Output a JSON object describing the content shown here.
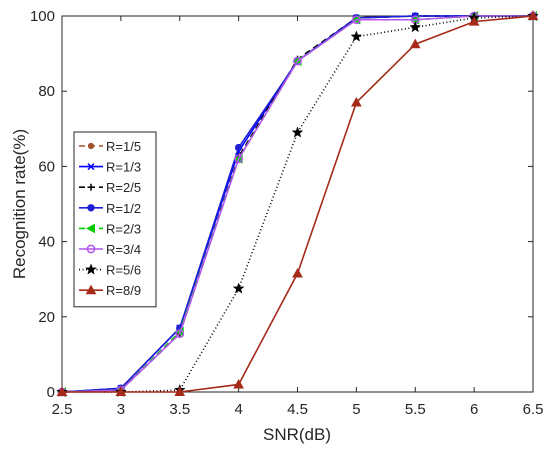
{
  "chart_data": {
    "type": "line",
    "title": "",
    "xlabel": "SNR(dB)",
    "ylabel": "Recognition rate(%)",
    "xlim": [
      2.5,
      6.5
    ],
    "ylim": [
      0,
      100
    ],
    "xticks": [
      "2.5",
      "3",
      "3.5",
      "4",
      "4.5",
      "5",
      "5.5",
      "6",
      "6.5"
    ],
    "yticks": [
      "0",
      "20",
      "40",
      "60",
      "80",
      "100"
    ],
    "grid": false,
    "legend_position": "middle-left",
    "x": [
      2.5,
      3,
      3.5,
      4,
      4.5,
      5,
      5.5,
      6,
      6.5
    ],
    "series": [
      {
        "name": "R=1/5",
        "color": "#a0522d",
        "dash": "6,4",
        "marker": "circle-small",
        "values": [
          0,
          0.5,
          16,
          62,
          88,
          99.5,
          100,
          100,
          100
        ]
      },
      {
        "name": "R=1/3",
        "color": "#0000ff",
        "dash": "",
        "marker": "x",
        "values": [
          0,
          1,
          17,
          64,
          88,
          99.5,
          100,
          100,
          100
        ]
      },
      {
        "name": "R=2/5",
        "color": "#000000",
        "dash": "6,4",
        "marker": "plus",
        "values": [
          0,
          0.5,
          15.5,
          62.5,
          88.5,
          99.5,
          100,
          100,
          100
        ]
      },
      {
        "name": "R=1/2",
        "color": "#1f1fd6",
        "dash": "",
        "marker": "circle",
        "values": [
          0,
          1,
          17,
          65,
          88,
          99.5,
          100,
          100,
          100
        ]
      },
      {
        "name": "R=2/3",
        "color": "#00cc00",
        "dash": "6,4",
        "marker": "triangle-left",
        "values": [
          0,
          0.5,
          16,
          62,
          88,
          99,
          99,
          100,
          100
        ]
      },
      {
        "name": "R=3/4",
        "color": "#b455ef",
        "dash": "",
        "marker": "circle-open",
        "values": [
          0,
          0.5,
          15.5,
          62,
          88,
          99,
          99,
          100,
          100
        ]
      },
      {
        "name": "R=5/6",
        "color": "#000000",
        "dash": "1,2.5",
        "marker": "star",
        "values": [
          0,
          0,
          0.5,
          27.5,
          69,
          94.5,
          97,
          99.5,
          100
        ]
      },
      {
        "name": "R=8/9",
        "color": "#a52a1a",
        "dash": "",
        "marker": "triangle-up",
        "values": [
          0,
          0,
          0,
          2,
          31.5,
          77,
          92.5,
          98.5,
          100
        ]
      }
    ]
  }
}
